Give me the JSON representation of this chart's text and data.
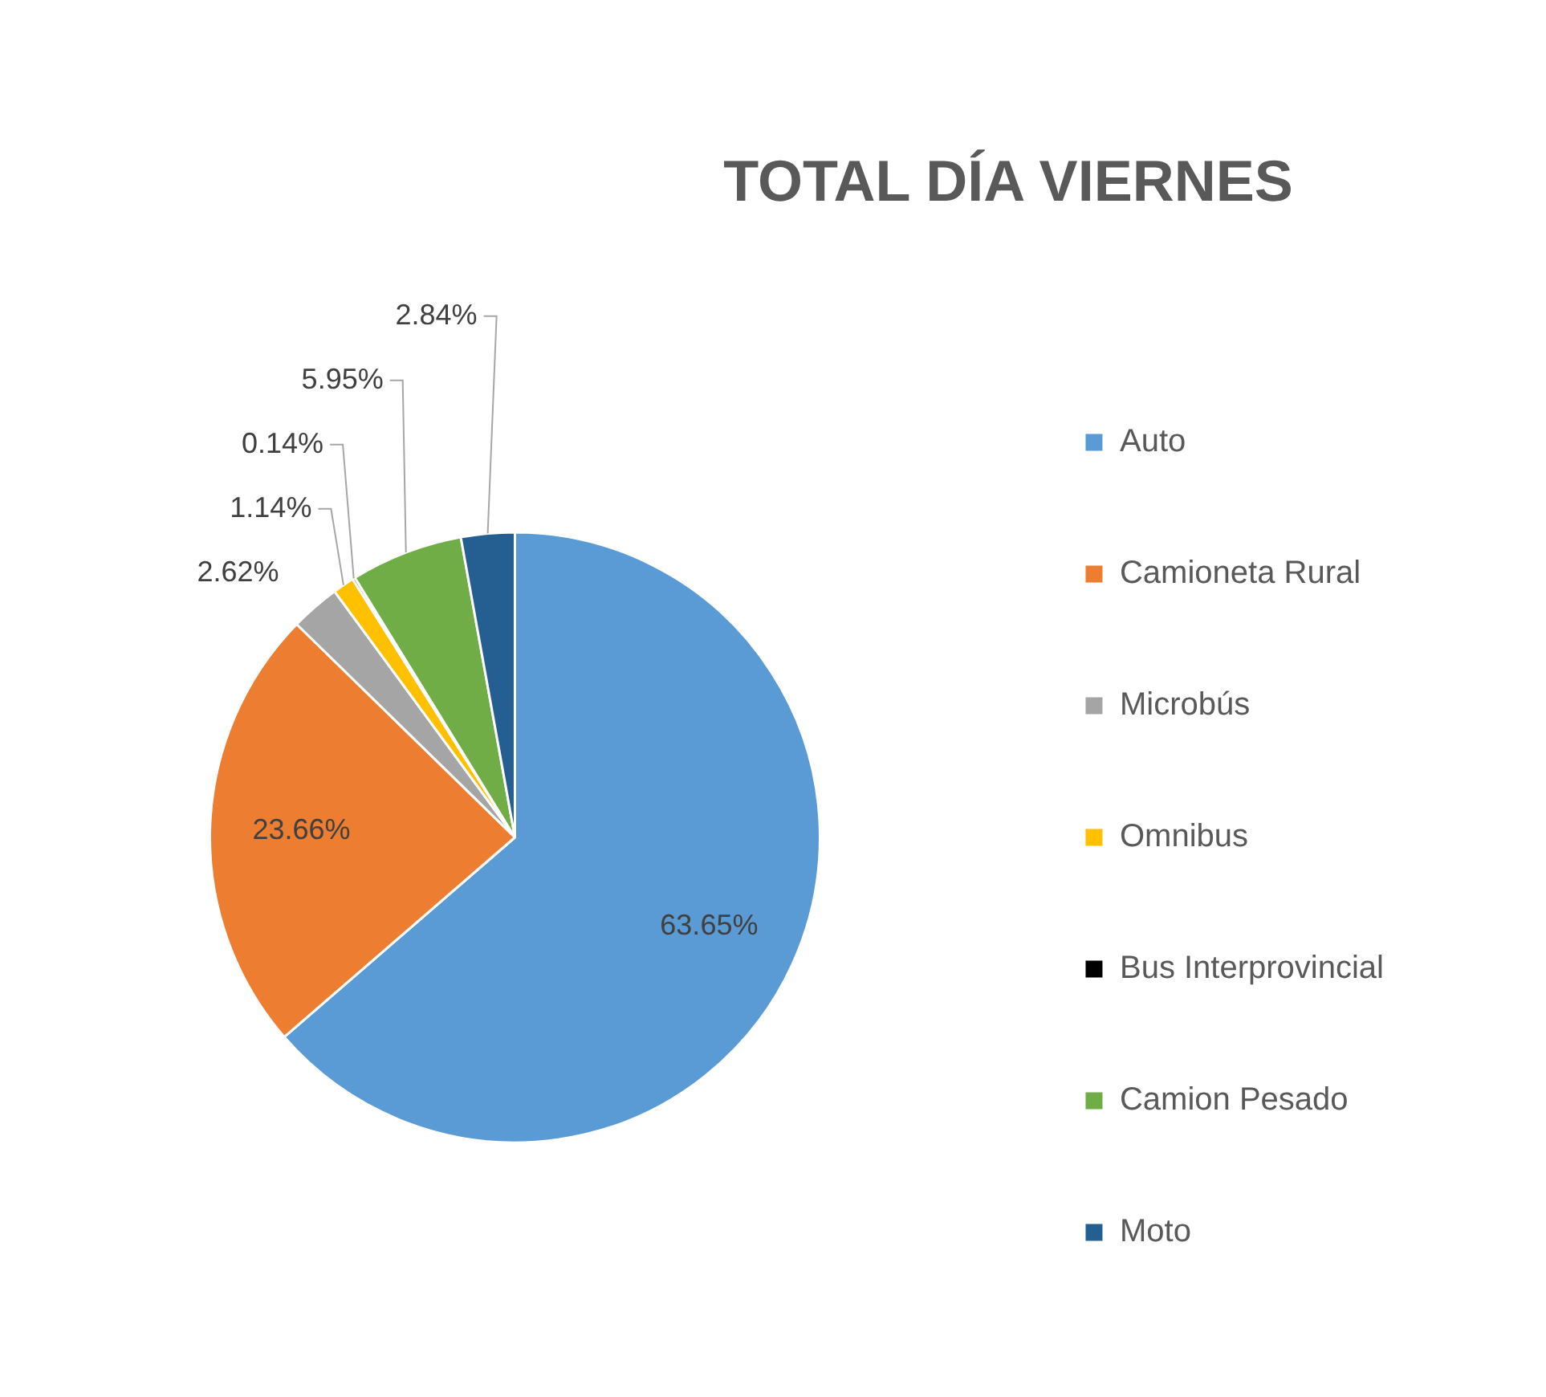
{
  "chart_data": {
    "type": "pie",
    "title": "TOTAL DÍA VIERNES",
    "categories": [
      "Auto",
      "Camioneta Rural",
      "Microbús",
      "Omnibus",
      "Bus Interprovincial",
      "Camion Pesado",
      "Moto"
    ],
    "values": [
      63.65,
      23.66,
      2.62,
      1.14,
      0.14,
      5.95,
      2.84
    ],
    "colors": [
      "#5b9bd5",
      "#ed7d31",
      "#a5a5a5",
      "#ffc000",
      "#000000",
      "#70ad47",
      "#255e91"
    ],
    "value_labels": [
      "63.65%",
      "23.66%",
      "2.62%",
      "1.14%",
      "0.14%",
      "5.95%",
      "2.84%"
    ],
    "legend": "right"
  }
}
